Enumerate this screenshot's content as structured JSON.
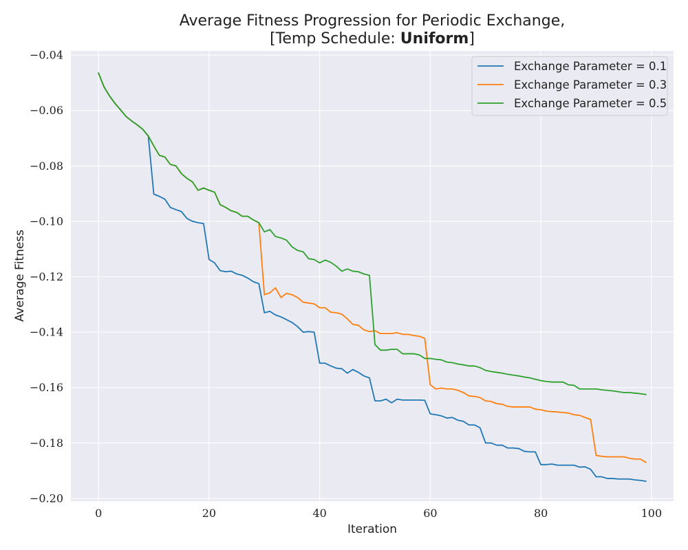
{
  "chart_data": {
    "type": "line",
    "title_line1": "Average Fitness Progression for Periodic Exchange,",
    "title_line2_prefix": "[Temp Schedule: ",
    "title_line2_bold": "Uniform",
    "title_line2_suffix": "]",
    "xlabel": "Iteration",
    "ylabel": "Average Fitness",
    "xlim": [
      -5,
      104
    ],
    "ylim": [
      -0.201,
      -0.0385
    ],
    "xticks": [
      0,
      20,
      40,
      60,
      80,
      100
    ],
    "xtick_labels": [
      "0",
      "20",
      "40",
      "60",
      "80",
      "100"
    ],
    "yticks": [
      -0.04,
      -0.06,
      -0.08,
      -0.1,
      -0.12,
      -0.14,
      -0.16,
      -0.18,
      -0.2
    ],
    "ytick_labels": [
      "−0.04",
      "−0.06",
      "−0.08",
      "−0.10",
      "−0.12",
      "−0.14",
      "−0.16",
      "−0.18",
      "−0.20"
    ],
    "grid": true,
    "legend_position": "top-right",
    "background_color": "#EAEAF2",
    "series": [
      {
        "name": "Exchange Parameter = 0.1",
        "color": "#1f77b4",
        "x": [
          0,
          1,
          2,
          3,
          4,
          5,
          6,
          7,
          8,
          9,
          10,
          11,
          12,
          13,
          14,
          15,
          16,
          17,
          18,
          19,
          20,
          21,
          22,
          23,
          24,
          25,
          26,
          27,
          28,
          29,
          30,
          31,
          32,
          33,
          34,
          35,
          36,
          37,
          38,
          39,
          40,
          41,
          42,
          43,
          44,
          45,
          46,
          47,
          48,
          49,
          50,
          51,
          52,
          53,
          54,
          55,
          56,
          57,
          58,
          59,
          60,
          61,
          62,
          63,
          64,
          65,
          66,
          67,
          68,
          69,
          70,
          71,
          72,
          73,
          74,
          75,
          76,
          77,
          78,
          79,
          80,
          81,
          82,
          83,
          84,
          85,
          86,
          87,
          88,
          89,
          90,
          91,
          92,
          93,
          94,
          95,
          96,
          97,
          98,
          99
        ],
        "y": [
          -0.0465,
          -0.0515,
          -0.0548,
          -0.0575,
          -0.0598,
          -0.0622,
          -0.0638,
          -0.0652,
          -0.0668,
          -0.0692,
          -0.0902,
          -0.091,
          -0.092,
          -0.095,
          -0.0958,
          -0.0965,
          -0.099,
          -0.1,
          -0.1005,
          -0.1008,
          -0.1138,
          -0.115,
          -0.1178,
          -0.1182,
          -0.118,
          -0.119,
          -0.1195,
          -0.1205,
          -0.1218,
          -0.1225,
          -0.133,
          -0.1325,
          -0.1338,
          -0.1345,
          -0.1355,
          -0.1365,
          -0.138,
          -0.14,
          -0.1398,
          -0.14,
          -0.1512,
          -0.1512,
          -0.1522,
          -0.153,
          -0.1532,
          -0.1548,
          -0.1535,
          -0.1545,
          -0.1558,
          -0.1565,
          -0.1648,
          -0.1648,
          -0.1642,
          -0.1655,
          -0.1642,
          -0.1645,
          -0.1645,
          -0.1645,
          -0.1645,
          -0.1646,
          -0.1695,
          -0.1698,
          -0.1702,
          -0.171,
          -0.1708,
          -0.1718,
          -0.1722,
          -0.1735,
          -0.1735,
          -0.1745,
          -0.18,
          -0.18,
          -0.1808,
          -0.1808,
          -0.1818,
          -0.1818,
          -0.182,
          -0.183,
          -0.1832,
          -0.1832,
          -0.1878,
          -0.1878,
          -0.1876,
          -0.188,
          -0.188,
          -0.188,
          -0.188,
          -0.1887,
          -0.1886,
          -0.1895,
          -0.1922,
          -0.1922,
          -0.1928,
          -0.1928,
          -0.193,
          -0.193,
          -0.193,
          -0.1933,
          -0.1935,
          -0.1938
        ]
      },
      {
        "name": "Exchange Parameter = 0.3",
        "color": "#ff7f0e",
        "x": [
          0,
          1,
          2,
          3,
          4,
          5,
          6,
          7,
          8,
          9,
          10,
          11,
          12,
          13,
          14,
          15,
          16,
          17,
          18,
          19,
          20,
          21,
          22,
          23,
          24,
          25,
          26,
          27,
          28,
          29,
          30,
          31,
          32,
          33,
          34,
          35,
          36,
          37,
          38,
          39,
          40,
          41,
          42,
          43,
          44,
          45,
          46,
          47,
          48,
          49,
          50,
          51,
          52,
          53,
          54,
          55,
          56,
          57,
          58,
          59,
          60,
          61,
          62,
          63,
          64,
          65,
          66,
          67,
          68,
          69,
          70,
          71,
          72,
          73,
          74,
          75,
          76,
          77,
          78,
          79,
          80,
          81,
          82,
          83,
          84,
          85,
          86,
          87,
          88,
          89,
          90,
          91,
          92,
          93,
          94,
          95,
          96,
          97,
          98,
          99
        ],
        "y": [
          -0.0465,
          -0.0515,
          -0.0548,
          -0.0575,
          -0.0598,
          -0.0622,
          -0.0638,
          -0.0652,
          -0.0668,
          -0.0692,
          -0.0728,
          -0.0762,
          -0.0768,
          -0.0795,
          -0.08,
          -0.0828,
          -0.0845,
          -0.0858,
          -0.0888,
          -0.088,
          -0.0888,
          -0.0895,
          -0.094,
          -0.095,
          -0.0962,
          -0.0968,
          -0.0982,
          -0.0982,
          -0.0995,
          -0.1005,
          -0.1265,
          -0.1258,
          -0.124,
          -0.1275,
          -0.126,
          -0.1265,
          -0.1275,
          -0.1292,
          -0.1295,
          -0.1298,
          -0.1312,
          -0.1312,
          -0.1328,
          -0.133,
          -0.1335,
          -0.1352,
          -0.1372,
          -0.1375,
          -0.1392,
          -0.1398,
          -0.1395,
          -0.1405,
          -0.1405,
          -0.1405,
          -0.1402,
          -0.1408,
          -0.1408,
          -0.1412,
          -0.1415,
          -0.1422,
          -0.159,
          -0.1605,
          -0.1602,
          -0.1605,
          -0.1605,
          -0.161,
          -0.1618,
          -0.163,
          -0.1632,
          -0.1636,
          -0.1648,
          -0.165,
          -0.1658,
          -0.166,
          -0.1668,
          -0.167,
          -0.167,
          -0.167,
          -0.167,
          -0.1678,
          -0.168,
          -0.1685,
          -0.1687,
          -0.1688,
          -0.169,
          -0.1692,
          -0.1698,
          -0.17,
          -0.1708,
          -0.1715,
          -0.1845,
          -0.1848,
          -0.185,
          -0.185,
          -0.185,
          -0.185,
          -0.1855,
          -0.1858,
          -0.1858,
          -0.187
        ]
      },
      {
        "name": "Exchange Parameter = 0.5",
        "color": "#2ca02c",
        "x": [
          0,
          1,
          2,
          3,
          4,
          5,
          6,
          7,
          8,
          9,
          10,
          11,
          12,
          13,
          14,
          15,
          16,
          17,
          18,
          19,
          20,
          21,
          22,
          23,
          24,
          25,
          26,
          27,
          28,
          29,
          30,
          31,
          32,
          33,
          34,
          35,
          36,
          37,
          38,
          39,
          40,
          41,
          42,
          43,
          44,
          45,
          46,
          47,
          48,
          49,
          50,
          51,
          52,
          53,
          54,
          55,
          56,
          57,
          58,
          59,
          60,
          61,
          62,
          63,
          64,
          65,
          66,
          67,
          68,
          69,
          70,
          71,
          72,
          73,
          74,
          75,
          76,
          77,
          78,
          79,
          80,
          81,
          82,
          83,
          84,
          85,
          86,
          87,
          88,
          89,
          90,
          91,
          92,
          93,
          94,
          95,
          96,
          97,
          98,
          99
        ],
        "y": [
          -0.0465,
          -0.0515,
          -0.0548,
          -0.0575,
          -0.0598,
          -0.0622,
          -0.0638,
          -0.0652,
          -0.0668,
          -0.0692,
          -0.0728,
          -0.0762,
          -0.0768,
          -0.0795,
          -0.08,
          -0.0828,
          -0.0845,
          -0.0858,
          -0.0888,
          -0.088,
          -0.0888,
          -0.0895,
          -0.094,
          -0.095,
          -0.0962,
          -0.0968,
          -0.0982,
          -0.0982,
          -0.0995,
          -0.1005,
          -0.1038,
          -0.103,
          -0.1055,
          -0.106,
          -0.1068,
          -0.1092,
          -0.1105,
          -0.111,
          -0.1135,
          -0.1138,
          -0.115,
          -0.114,
          -0.1148,
          -0.1162,
          -0.118,
          -0.1172,
          -0.118,
          -0.1182,
          -0.119,
          -0.1195,
          -0.1445,
          -0.1465,
          -0.1465,
          -0.1462,
          -0.1462,
          -0.1478,
          -0.1478,
          -0.1478,
          -0.1482,
          -0.1495,
          -0.1495,
          -0.1498,
          -0.15,
          -0.1508,
          -0.151,
          -0.1515,
          -0.1518,
          -0.1522,
          -0.1522,
          -0.1528,
          -0.1538,
          -0.1542,
          -0.1545,
          -0.1548,
          -0.1552,
          -0.1555,
          -0.1558,
          -0.1562,
          -0.1565,
          -0.157,
          -0.1575,
          -0.1578,
          -0.158,
          -0.158,
          -0.158,
          -0.159,
          -0.1592,
          -0.1605,
          -0.1605,
          -0.1605,
          -0.1605,
          -0.1608,
          -0.161,
          -0.1612,
          -0.1615,
          -0.1618,
          -0.1618,
          -0.162,
          -0.1622,
          -0.1625
        ]
      }
    ]
  }
}
